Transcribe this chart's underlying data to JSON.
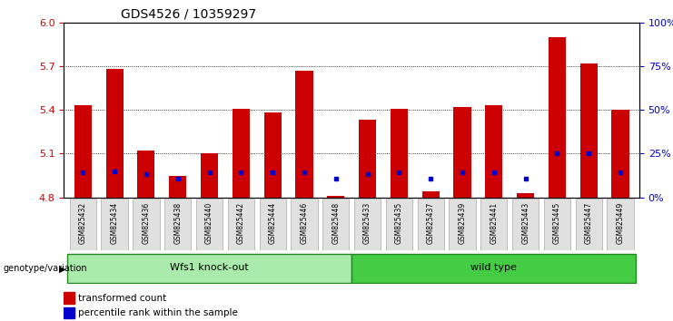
{
  "title": "GDS4526 / 10359297",
  "samples": [
    "GSM825432",
    "GSM825434",
    "GSM825436",
    "GSM825438",
    "GSM825440",
    "GSM825442",
    "GSM825444",
    "GSM825446",
    "GSM825448",
    "GSM825433",
    "GSM825435",
    "GSM825437",
    "GSM825439",
    "GSM825441",
    "GSM825443",
    "GSM825445",
    "GSM825447",
    "GSM825449"
  ],
  "red_values": [
    5.43,
    5.68,
    5.12,
    4.95,
    5.1,
    5.41,
    5.38,
    5.67,
    4.81,
    5.33,
    5.41,
    4.84,
    5.42,
    5.43,
    4.83,
    5.9,
    5.72,
    5.4
  ],
  "blue_values": [
    4.97,
    4.98,
    4.96,
    4.93,
    4.97,
    4.97,
    4.97,
    4.97,
    4.93,
    4.96,
    4.97,
    4.93,
    4.97,
    4.97,
    4.93,
    5.1,
    5.1,
    4.97
  ],
  "y_min": 4.8,
  "y_max": 6.0,
  "y_ticks_left": [
    4.8,
    5.1,
    5.4,
    5.7,
    6.0
  ],
  "y_ticks_right": [
    0,
    25,
    50,
    75,
    100
  ],
  "group1_label": "Wfs1 knock-out",
  "group2_label": "wild type",
  "group1_count": 9,
  "group2_count": 9,
  "genotype_label": "genotype/variation",
  "legend1": "transformed count",
  "legend2": "percentile rank within the sample",
  "red_color": "#cc0000",
  "blue_color": "#0000cc",
  "group1_color": "#aaeaaa",
  "group2_color": "#44cc44",
  "bar_width": 0.55,
  "base": 4.8
}
